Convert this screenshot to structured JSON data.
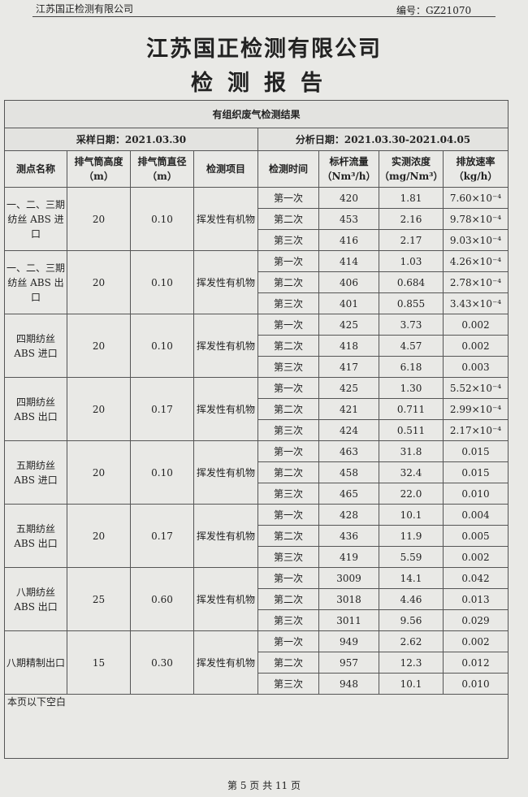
{
  "header": {
    "company_small": "江苏国正检测有限公司",
    "report_no": "编号：GZ21070",
    "title": "江苏国正检测有限公司",
    "subtitle": "检测报告"
  },
  "table": {
    "caption": "有组织废气检测结果",
    "sample_date": "采样日期：2021.03.30",
    "analysis_date": "分析日期：2021.03.30-2021.04.05",
    "columns": [
      "测点名称",
      "排气筒高度（m）",
      "排气筒直径（m）",
      "检测项目",
      "检测时间",
      "标杆流量（Nm³/h）",
      "实测浓度（mg/Nm³）",
      "排放速率（kg/h）"
    ],
    "groups": [
      {
        "site": "一、二、三期纺丝 ABS 进口",
        "height": "20",
        "diameter": "0.10",
        "item": "挥发性有机物",
        "rows": [
          [
            "第一次",
            "420",
            "1.81",
            "7.60×10⁻⁴"
          ],
          [
            "第二次",
            "453",
            "2.16",
            "9.78×10⁻⁴"
          ],
          [
            "第三次",
            "416",
            "2.17",
            "9.03×10⁻⁴"
          ]
        ]
      },
      {
        "site": "一、二、三期纺丝 ABS 出口",
        "height": "20",
        "diameter": "0.10",
        "item": "挥发性有机物",
        "rows": [
          [
            "第一次",
            "414",
            "1.03",
            "4.26×10⁻⁴"
          ],
          [
            "第二次",
            "406",
            "0.684",
            "2.78×10⁻⁴"
          ],
          [
            "第三次",
            "401",
            "0.855",
            "3.43×10⁻⁴"
          ]
        ]
      },
      {
        "site": "四期纺丝 ABS 进口",
        "height": "20",
        "diameter": "0.10",
        "item": "挥发性有机物",
        "rows": [
          [
            "第一次",
            "425",
            "3.73",
            "0.002"
          ],
          [
            "第二次",
            "418",
            "4.57",
            "0.002"
          ],
          [
            "第三次",
            "417",
            "6.18",
            "0.003"
          ]
        ]
      },
      {
        "site": "四期纺丝 ABS 出口",
        "height": "20",
        "diameter": "0.17",
        "item": "挥发性有机物",
        "rows": [
          [
            "第一次",
            "425",
            "1.30",
            "5.52×10⁻⁴"
          ],
          [
            "第二次",
            "421",
            "0.711",
            "2.99×10⁻⁴"
          ],
          [
            "第三次",
            "424",
            "0.511",
            "2.17×10⁻⁴"
          ]
        ]
      },
      {
        "site": "五期纺丝 ABS 进口",
        "height": "20",
        "diameter": "0.10",
        "item": "挥发性有机物",
        "rows": [
          [
            "第一次",
            "463",
            "31.8",
            "0.015"
          ],
          [
            "第二次",
            "458",
            "32.4",
            "0.015"
          ],
          [
            "第三次",
            "465",
            "22.0",
            "0.010"
          ]
        ]
      },
      {
        "site": "五期纺丝 ABS 出口",
        "height": "20",
        "diameter": "0.17",
        "item": "挥发性有机物",
        "rows": [
          [
            "第一次",
            "428",
            "10.1",
            "0.004"
          ],
          [
            "第二次",
            "436",
            "11.9",
            "0.005"
          ],
          [
            "第三次",
            "419",
            "5.59",
            "0.002"
          ]
        ]
      },
      {
        "site": "八期纺丝 ABS 出口",
        "height": "25",
        "diameter": "0.60",
        "item": "挥发性有机物",
        "rows": [
          [
            "第一次",
            "3009",
            "14.1",
            "0.042"
          ],
          [
            "第二次",
            "3018",
            "4.46",
            "0.013"
          ],
          [
            "第三次",
            "3011",
            "9.56",
            "0.029"
          ]
        ]
      },
      {
        "site": "八期精制出口",
        "height": "15",
        "diameter": "0.30",
        "item": "挥发性有机物",
        "rows": [
          [
            "第一次",
            "949",
            "2.62",
            "0.002"
          ],
          [
            "第二次",
            "957",
            "12.3",
            "0.012"
          ],
          [
            "第三次",
            "948",
            "10.1",
            "0.010"
          ]
        ]
      }
    ],
    "note": "本页以下空白"
  },
  "footer": {
    "page": "第 5 页 共 11 页"
  }
}
